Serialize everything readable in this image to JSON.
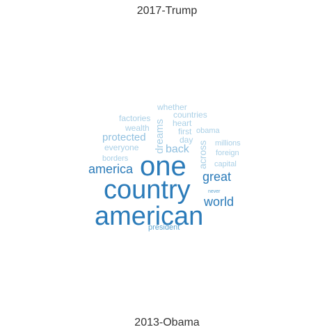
{
  "titles": {
    "top": "2017-Trump",
    "bottom": "2013-Obama"
  },
  "colors": {
    "dark_blue": "#2b7bb9",
    "mid_blue": "#5ea3cf",
    "light_blue": "#a9cfe6",
    "title_gray": "#333333"
  },
  "words": [
    {
      "text": "american",
      "color": "#2b7bb9"
    },
    {
      "text": "country",
      "color": "#2b7bb9"
    },
    {
      "text": "one",
      "color": "#2b7bb9"
    },
    {
      "text": "america",
      "color": "#2b7bb9"
    },
    {
      "text": "great",
      "color": "#2b7bb9"
    },
    {
      "text": "world",
      "color": "#2b7bb9"
    },
    {
      "text": "president",
      "color": "#5ea3cf"
    },
    {
      "text": "never",
      "color": "#5ea3cf"
    },
    {
      "text": "back",
      "color": "#8fbfdf"
    },
    {
      "text": "protected",
      "color": "#8fbfdf"
    },
    {
      "text": "dreams",
      "color": "#a9cfe6"
    },
    {
      "text": "across",
      "color": "#a9cfe6"
    },
    {
      "text": "everyone",
      "color": "#a9cfe6"
    },
    {
      "text": "borders",
      "color": "#a9cfe6"
    },
    {
      "text": "wealth",
      "color": "#a9cfe6"
    },
    {
      "text": "factories",
      "color": "#a9cfe6"
    },
    {
      "text": "whether",
      "color": "#a9cfe6"
    },
    {
      "text": "countries",
      "color": "#a9cfe6"
    },
    {
      "text": "heart",
      "color": "#a9cfe6"
    },
    {
      "text": "first",
      "color": "#a9cfe6"
    },
    {
      "text": "obama",
      "color": "#a9cfe6"
    },
    {
      "text": "day",
      "color": "#a9cfe6"
    },
    {
      "text": "millions",
      "color": "#a9cfe6"
    },
    {
      "text": "foreign",
      "color": "#a9cfe6"
    },
    {
      "text": "capital",
      "color": "#a9cfe6"
    }
  ]
}
